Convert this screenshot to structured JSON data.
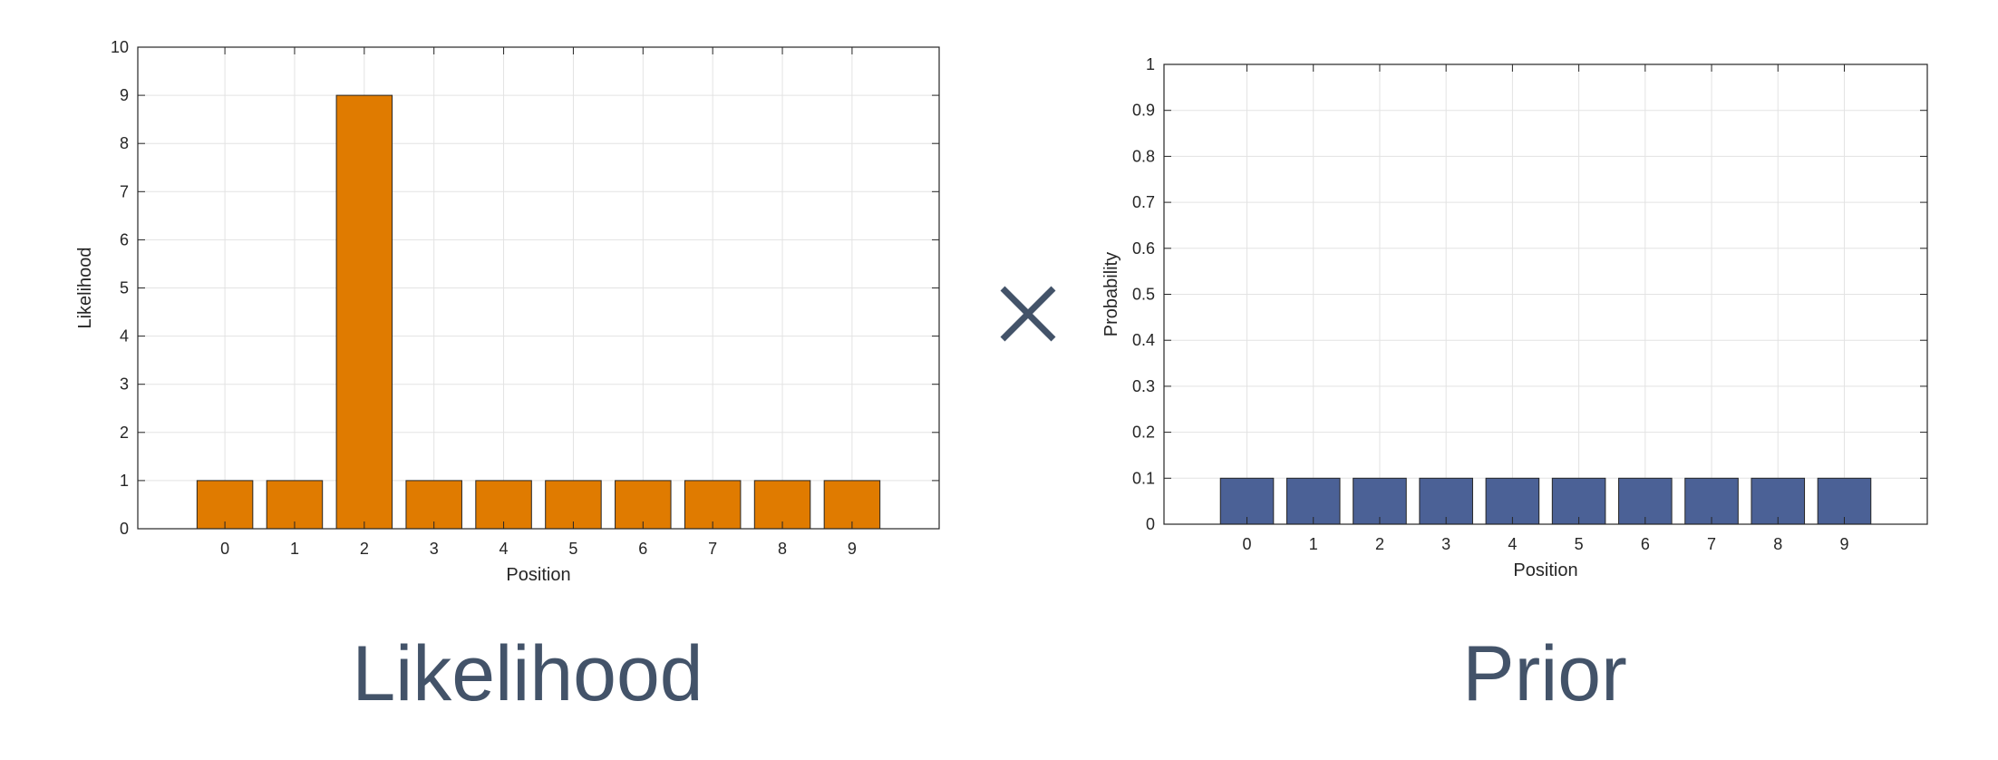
{
  "operator_symbol": "×",
  "captions": {
    "left": "Likelihood",
    "right": "Prior"
  },
  "colors": {
    "likelihood_bar": "#E07B00",
    "prior_bar": "#4B6196",
    "operator": "#435369",
    "caption": "#435369"
  },
  "chart_data": [
    {
      "type": "bar",
      "title": "",
      "xlabel": "Position",
      "ylabel": "Likelihood",
      "categories": [
        "0",
        "1",
        "2",
        "3",
        "4",
        "5",
        "6",
        "7",
        "8",
        "9"
      ],
      "values": [
        1,
        1,
        9,
        1,
        1,
        1,
        1,
        1,
        1,
        1
      ],
      "ylim": [
        0,
        10
      ],
      "yticks": [
        "0",
        "1",
        "2",
        "3",
        "4",
        "5",
        "6",
        "7",
        "8",
        "9",
        "10"
      ],
      "grid": true,
      "color": "#E07B00"
    },
    {
      "type": "bar",
      "title": "",
      "xlabel": "Position",
      "ylabel": "Probability",
      "categories": [
        "0",
        "1",
        "2",
        "3",
        "4",
        "5",
        "6",
        "7",
        "8",
        "9"
      ],
      "values": [
        0.1,
        0.1,
        0.1,
        0.1,
        0.1,
        0.1,
        0.1,
        0.1,
        0.1,
        0.1
      ],
      "ylim": [
        0,
        1
      ],
      "yticks": [
        "0",
        "0.1",
        "0.2",
        "0.3",
        "0.4",
        "0.5",
        "0.6",
        "0.7",
        "0.8",
        "0.9",
        "1"
      ],
      "grid": true,
      "color": "#4B6196"
    }
  ]
}
